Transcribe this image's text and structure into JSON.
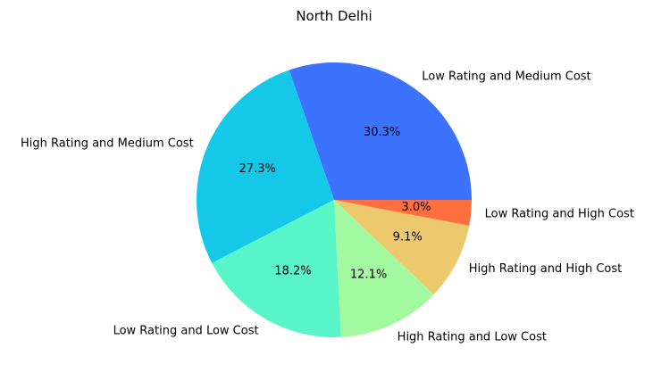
{
  "chart_data": {
    "type": "pie",
    "title": "North Delhi",
    "slices": [
      {
        "label": "Low Rating and Medium Cost",
        "value": 30.3,
        "pct_text": "30.3%",
        "color": "#3d72ff"
      },
      {
        "label": "High Rating and Medium Cost",
        "value": 27.3,
        "pct_text": "27.3%",
        "color": "#16c8e8"
      },
      {
        "label": "Low Rating and Low Cost",
        "value": 18.2,
        "pct_text": "18.2%",
        "color": "#58f5c8"
      },
      {
        "label": "High Rating and Low Cost",
        "value": 12.1,
        "pct_text": "12.1%",
        "color": "#a2f99f"
      },
      {
        "label": "High Rating and High Cost",
        "value": 9.1,
        "pct_text": "9.1%",
        "color": "#edc96e"
      },
      {
        "label": "Low Rating and High Cost",
        "value": 3.0,
        "pct_text": "3.0%",
        "color": "#ff6e3e"
      }
    ],
    "start_angle_deg": 0,
    "direction": "counterclockwise"
  }
}
